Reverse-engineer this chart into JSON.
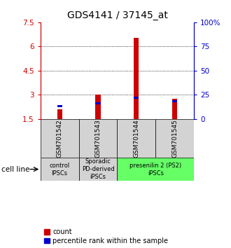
{
  "title": "GDS4141 / 37145_at",
  "samples": [
    "GSM701542",
    "GSM701543",
    "GSM701544",
    "GSM701545"
  ],
  "count_values": [
    2.1,
    3.0,
    6.55,
    2.75
  ],
  "percentile_values": [
    13,
    16,
    22,
    18
  ],
  "ylim_left": [
    1.5,
    7.5
  ],
  "ylim_right": [
    0,
    100
  ],
  "yticks_left": [
    1.5,
    3.0,
    4.5,
    6.0,
    7.5
  ],
  "yticks_right": [
    0,
    25,
    50,
    75,
    100
  ],
  "ytick_labels_left": [
    "1.5",
    "3",
    "4.5",
    "6",
    "7.5"
  ],
  "ytick_labels_right": [
    "0",
    "25",
    "50",
    "75",
    "100%"
  ],
  "count_color": "#cc0000",
  "percentile_color": "#0000cc",
  "group_defs": [
    {
      "span": [
        0,
        1
      ],
      "label": "control\nIPSCs",
      "color": "#d3d3d3"
    },
    {
      "span": [
        1,
        2
      ],
      "label": "Sporadic\nPD-derived\niPSCs",
      "color": "#d3d3d3"
    },
    {
      "span": [
        2,
        4
      ],
      "label": "presenilin 2 (PS2)\niPSCs",
      "color": "#66ff66"
    }
  ],
  "cell_line_label": "cell line",
  "legend_count_label": "count",
  "legend_percentile_label": "percentile rank within the sample",
  "left_axis_color": "#cc0000",
  "right_axis_color": "#0000cc",
  "title_fontsize": 10,
  "tick_fontsize": 7.5,
  "gsm_fontsize": 6.5,
  "group_fontsize": 6.0,
  "legend_fontsize": 7.0,
  "bar_width": 0.13
}
